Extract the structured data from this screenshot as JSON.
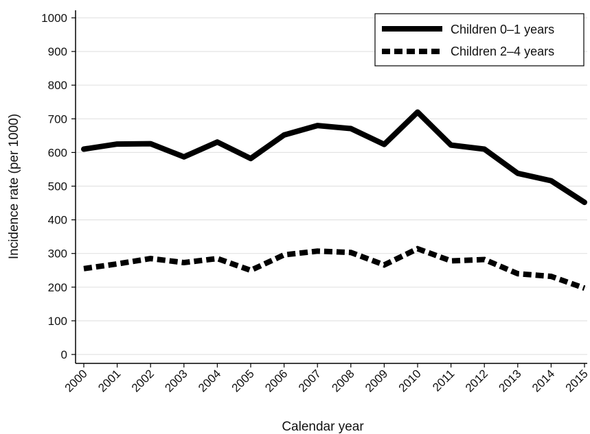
{
  "chart_data": {
    "type": "line",
    "title": "",
    "xlabel": "Calendar year",
    "ylabel": "Incidence rate (per 1000)",
    "x": [
      "2000",
      "2001",
      "2002",
      "2003",
      "2004",
      "2005",
      "2006",
      "2007",
      "2008",
      "2009",
      "2010",
      "2011",
      "2012",
      "2013",
      "2014",
      "2015"
    ],
    "ylim": [
      0,
      1000
    ],
    "yticks": [
      0,
      100,
      200,
      300,
      400,
      500,
      600,
      700,
      800,
      900,
      1000
    ],
    "grid": true,
    "legend_position": "top-right",
    "series": [
      {
        "name": "Children 0–1 years",
        "style": "solid",
        "color": "#000000",
        "values": [
          610,
          625,
          626,
          587,
          631,
          582,
          652,
          680,
          671,
          624,
          720,
          622,
          610,
          538,
          516,
          452
        ]
      },
      {
        "name": "Children 2–4 years",
        "style": "dashed",
        "color": "#000000",
        "values": [
          255,
          269,
          285,
          273,
          285,
          250,
          296,
          307,
          303,
          266,
          314,
          278,
          282,
          240,
          232,
          197
        ]
      }
    ]
  }
}
